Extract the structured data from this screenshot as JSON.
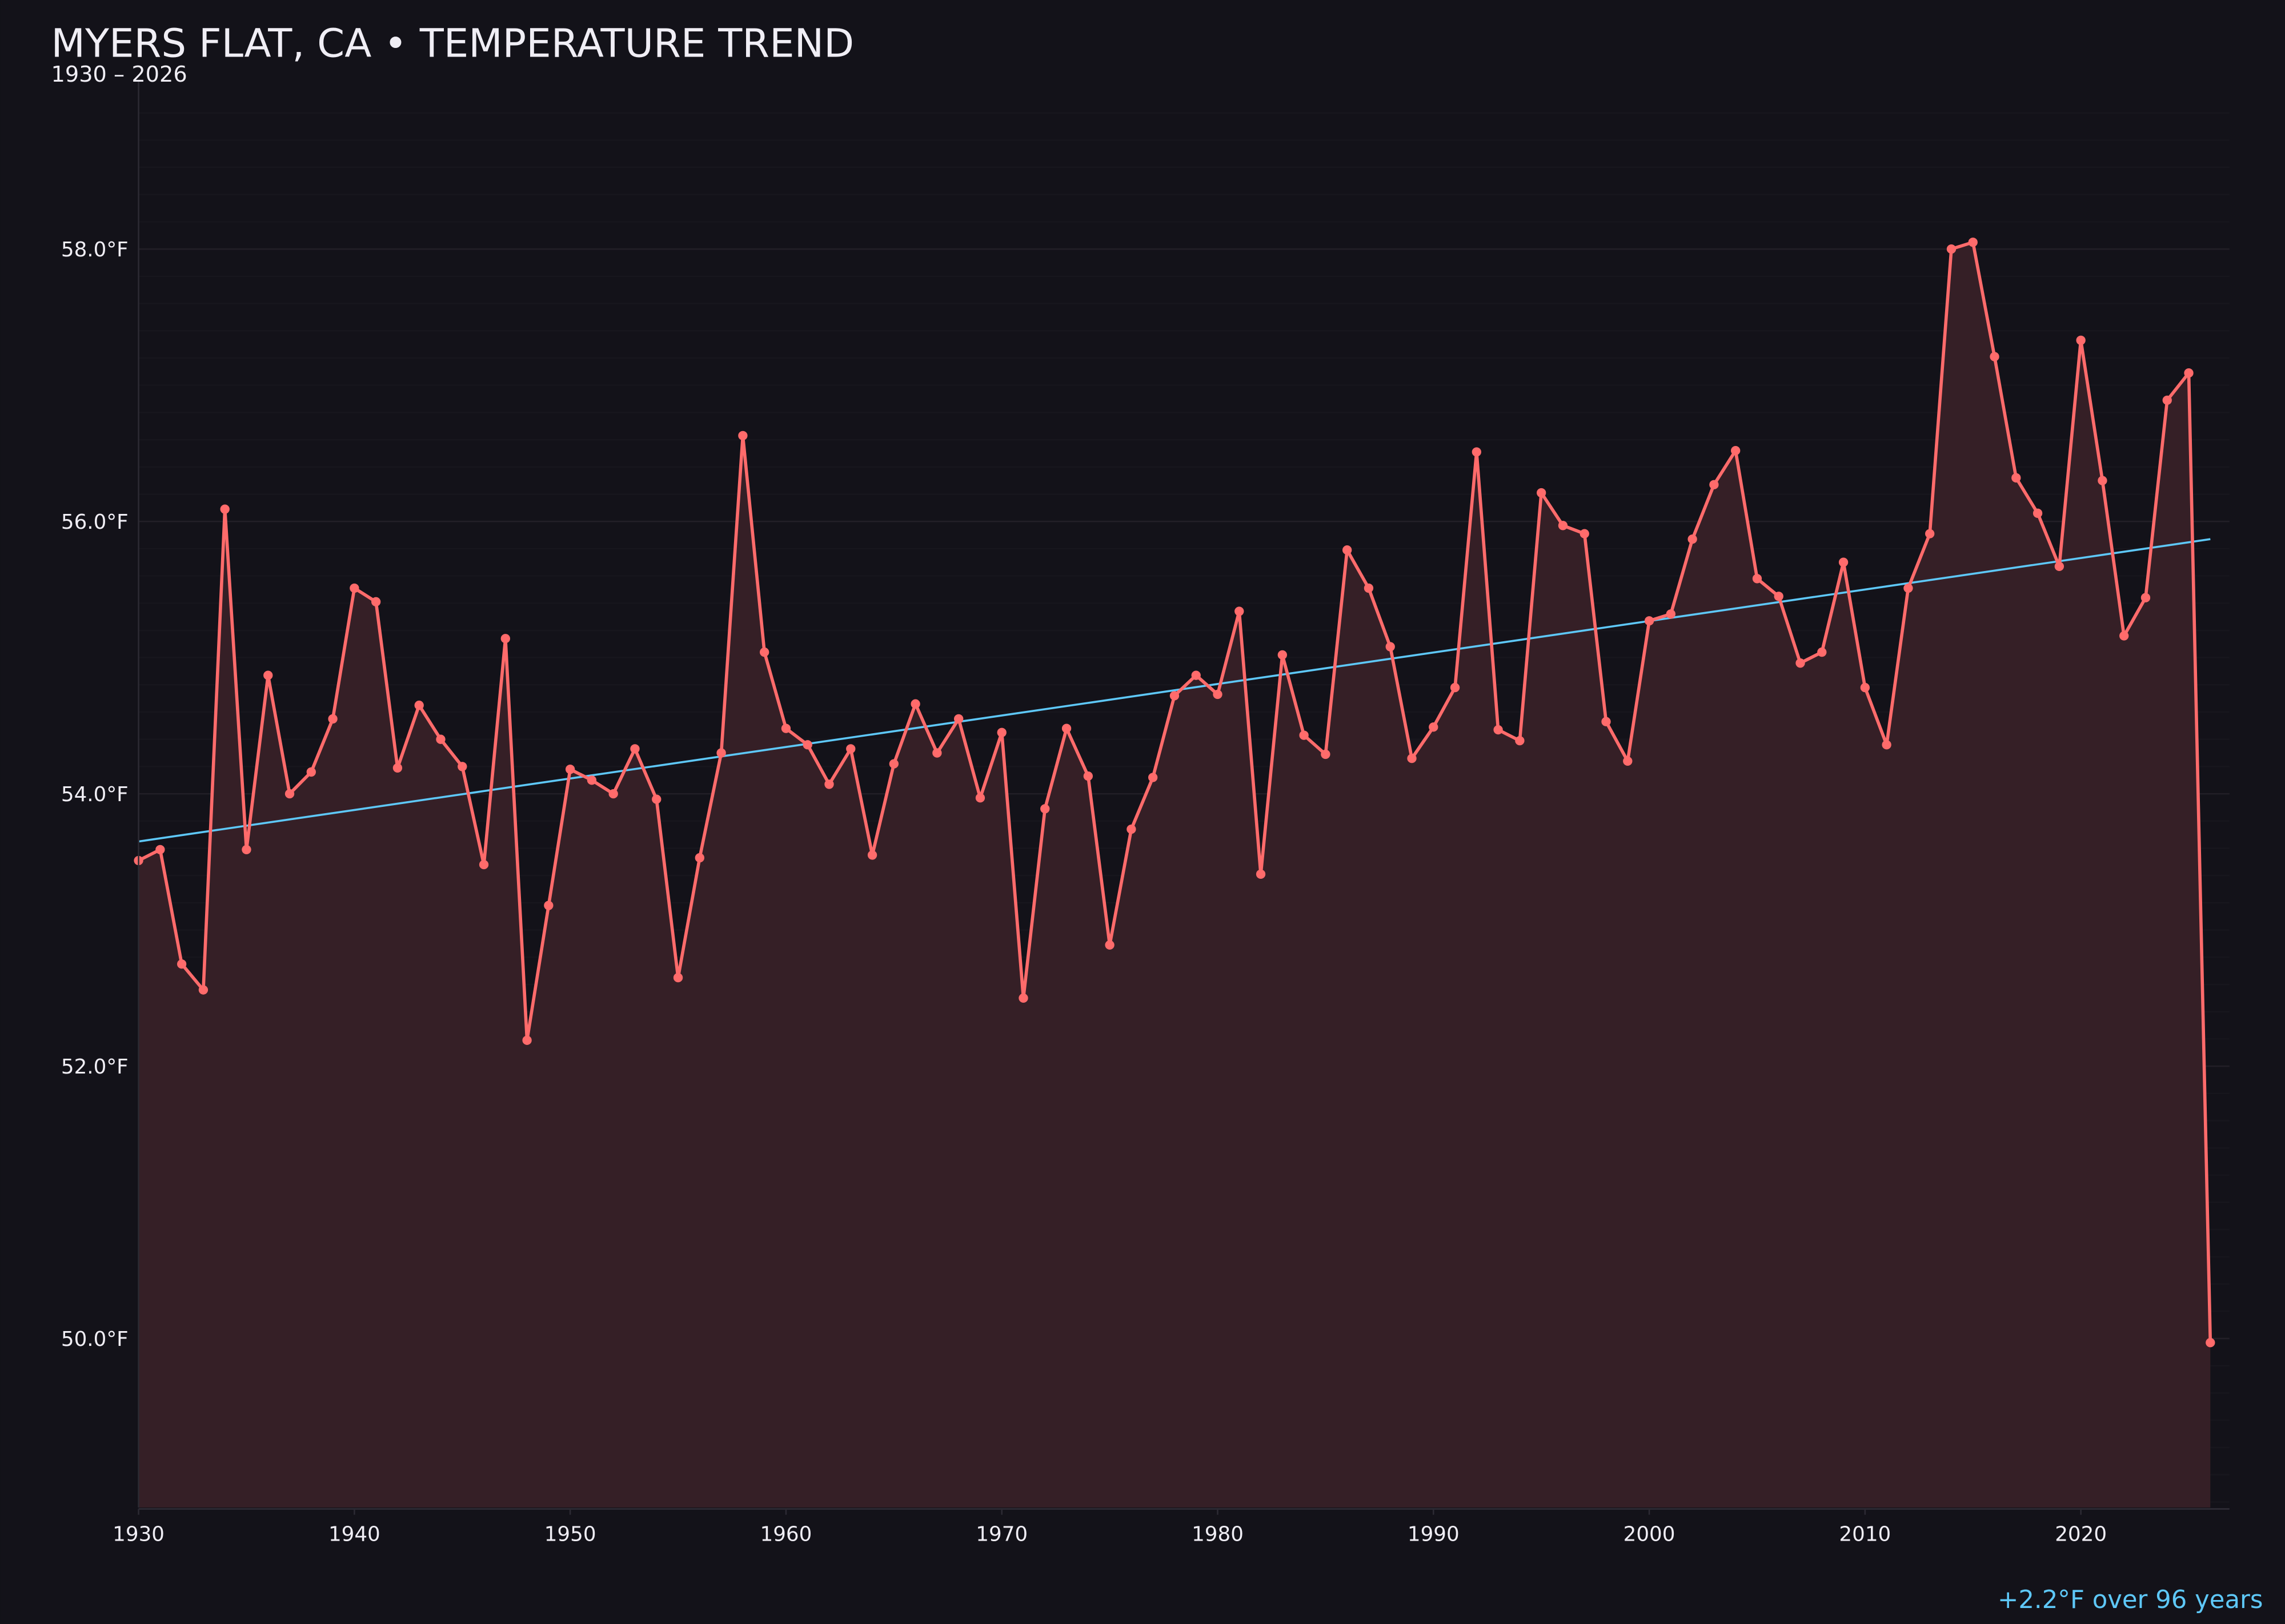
{
  "title": "MYERS FLAT, CA • TEMPERATURE TREND",
  "subtitle": "1930 – 2026",
  "annotation": "+2.2°F over 96 years",
  "colors": {
    "background": "#131219",
    "line": "#ff6b6b",
    "fill": "#351f26",
    "trend": "#5ec8f8",
    "text": "#f0eef5",
    "grid": "#221f27"
  },
  "chart_data": {
    "type": "line",
    "title": "MYERS FLAT, CA • TEMPERATURE TREND",
    "subtitle": "1930 – 2026",
    "xlabel": "",
    "ylabel": "",
    "xlim": [
      1930,
      2027
    ],
    "ylim": [
      48.76,
      59.24
    ],
    "grid": true,
    "area_fill": true,
    "x_ticks": [
      1930,
      1940,
      1950,
      1960,
      1970,
      1980,
      1990,
      2000,
      2010,
      2020
    ],
    "x_tick_labels": [
      "1930",
      "1940",
      "1950",
      "1960",
      "1970",
      "1980",
      "1990",
      "2000",
      "2010",
      "2020"
    ],
    "y_ticks": [
      50,
      52,
      54,
      56,
      58
    ],
    "y_tick_labels": [
      "50.0°F",
      "52.0°F",
      "54.0°F",
      "56.0°F",
      "58.0°F"
    ],
    "x": [
      1930,
      1931,
      1932,
      1933,
      1934,
      1935,
      1936,
      1937,
      1938,
      1939,
      1940,
      1941,
      1942,
      1943,
      1944,
      1945,
      1946,
      1947,
      1948,
      1949,
      1950,
      1951,
      1952,
      1953,
      1954,
      1955,
      1956,
      1957,
      1958,
      1959,
      1960,
      1961,
      1962,
      1963,
      1964,
      1965,
      1966,
      1967,
      1968,
      1969,
      1970,
      1971,
      1972,
      1973,
      1974,
      1975,
      1976,
      1977,
      1978,
      1979,
      1980,
      1981,
      1982,
      1983,
      1984,
      1985,
      1986,
      1987,
      1988,
      1989,
      1990,
      1991,
      1992,
      1993,
      1994,
      1995,
      1996,
      1997,
      1998,
      1999,
      2000,
      2001,
      2002,
      2003,
      2004,
      2005,
      2006,
      2007,
      2008,
      2009,
      2010,
      2011,
      2012,
      2013,
      2014,
      2015,
      2016,
      2017,
      2018,
      2019,
      2020,
      2021,
      2022,
      2023,
      2024,
      2025,
      2026
    ],
    "values": [
      53.51,
      53.59,
      52.75,
      52.56,
      56.09,
      53.59,
      54.87,
      54.0,
      54.16,
      54.55,
      55.51,
      55.41,
      54.19,
      54.65,
      54.4,
      54.2,
      53.48,
      55.14,
      52.19,
      53.18,
      54.18,
      54.1,
      54.0,
      54.33,
      53.96,
      52.65,
      53.53,
      54.3,
      56.63,
      55.04,
      54.48,
      54.36,
      54.07,
      54.33,
      53.55,
      54.22,
      54.66,
      54.3,
      54.55,
      53.97,
      54.45,
      52.5,
      53.89,
      54.48,
      54.13,
      52.89,
      53.74,
      54.12,
      54.72,
      54.87,
      54.73,
      55.34,
      53.41,
      55.02,
      54.43,
      54.29,
      55.79,
      55.51,
      55.08,
      54.26,
      54.49,
      54.78,
      56.51,
      54.47,
      54.39,
      56.21,
      55.97,
      55.91,
      54.53,
      54.24,
      55.27,
      55.32,
      55.87,
      56.27,
      56.52,
      55.58,
      55.45,
      54.96,
      55.04,
      55.7,
      54.78,
      54.36,
      55.51,
      55.91,
      58.0,
      58.05,
      57.21,
      56.32,
      56.06,
      55.67,
      57.33,
      56.3,
      55.16,
      55.44,
      56.89,
      57.09,
      49.97
    ],
    "trend": {
      "x": [
        1930,
        2026
      ],
      "values": [
        53.65,
        55.87
      ]
    }
  }
}
